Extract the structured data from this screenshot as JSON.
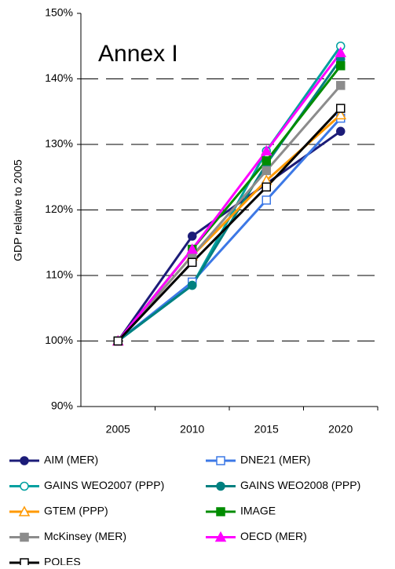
{
  "chart_data": {
    "type": "line",
    "annotation": "Annex I",
    "y_label": "GDP relative to 2005",
    "categories": [
      "2005",
      "2010",
      "2015",
      "2020"
    ],
    "ylim": [
      90,
      150
    ],
    "yticks": [
      {
        "value": 90,
        "label": "90%"
      },
      {
        "value": 100,
        "label": "100%"
      },
      {
        "value": 110,
        "label": "110%"
      },
      {
        "value": 120,
        "label": "120%"
      },
      {
        "value": 130,
        "label": "130%"
      },
      {
        "value": 140,
        "label": "140%"
      },
      {
        "value": 150,
        "label": "150%"
      }
    ],
    "grid": true,
    "series": [
      {
        "name": "AIM (MER)",
        "color": "#1c1c78",
        "marker": "circle",
        "filled": true,
        "values": [
          100,
          116,
          124,
          132
        ]
      },
      {
        "name": "DNE21 (MER)",
        "color": "#3c78e6",
        "marker": "square",
        "filled": false,
        "values": [
          100,
          109,
          121.5,
          134
        ]
      },
      {
        "name": "GAINS WEO2007 (PPP)",
        "color": "#00a0a0",
        "marker": "circle",
        "filled": false,
        "values": [
          100,
          108.5,
          129,
          145
        ]
      },
      {
        "name": "GAINS WEO2008 (PPP)",
        "color": "#008080",
        "marker": "circle",
        "filled": true,
        "values": [
          100,
          108.5,
          127,
          143
        ]
      },
      {
        "name": "GTEM (PPP)",
        "color": "#ff9900",
        "marker": "triangle",
        "filled": false,
        "values": [
          100,
          113,
          124.5,
          134.5
        ]
      },
      {
        "name": "IMAGE",
        "color": "#008c00",
        "marker": "square",
        "filled": true,
        "values": [
          100,
          114,
          127.5,
          142
        ]
      },
      {
        "name": "McKinsey (MER)",
        "color": "#8c8c8c",
        "marker": "square",
        "filled": true,
        "values": [
          100,
          113,
          126,
          139
        ]
      },
      {
        "name": "OECD (MER)",
        "color": "#ff00ff",
        "marker": "triangle",
        "filled": true,
        "values": [
          100,
          114,
          129,
          144
        ]
      },
      {
        "name": "POLES",
        "color": "#000000",
        "marker": "square",
        "filled": false,
        "values": [
          100,
          112,
          123.5,
          135.5
        ]
      }
    ]
  }
}
